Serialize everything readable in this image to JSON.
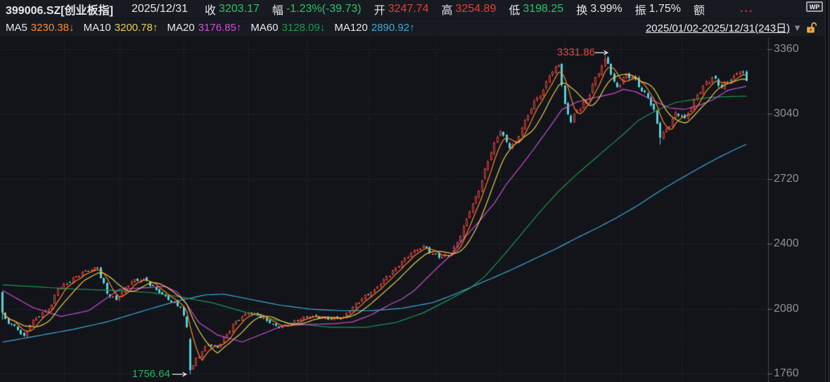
{
  "header": {
    "symbol": "399006.SZ[创业板指]",
    "date": "2025/12/31",
    "stats": [
      {
        "label": "收",
        "value": "3203.17",
        "color": "#2ec06a"
      },
      {
        "label": "幅",
        "value": "-1.23%(-39.73)",
        "color": "#2ec06a"
      },
      {
        "label": "开",
        "value": "3247.74",
        "color": "#e0403a"
      },
      {
        "label": "高",
        "value": "3254.89",
        "color": "#e0403a"
      },
      {
        "label": "低",
        "value": "3198.25",
        "color": "#2ec06a"
      },
      {
        "label": "换",
        "value": "3.99%",
        "color": "#e6e8ea"
      },
      {
        "label": "振",
        "value": "1.75%",
        "color": "#e6e8ea"
      },
      {
        "label": "额",
        "value": "...",
        "color": "#c03a3c"
      }
    ],
    "wp_icon_text": "WP"
  },
  "ma_legend": [
    {
      "label": "MA5",
      "value": "3230.38",
      "arrow": "↓",
      "color": "#ff8a28"
    },
    {
      "label": "MA10",
      "value": "3200.78",
      "arrow": "↑",
      "color": "#ecd04e"
    },
    {
      "label": "MA20",
      "value": "3176.85",
      "arrow": "↑",
      "color": "#cc50d4"
    },
    {
      "label": "MA60",
      "value": "3128.09",
      "arrow": "↓",
      "color": "#1e9655"
    },
    {
      "label": "MA120",
      "value": "2890.92",
      "arrow": "↑",
      "color": "#3fa9dc"
    }
  ],
  "range_selector": {
    "label": "2025/01/02-2025/12/31(243日)"
  },
  "chart_data": {
    "type": "candlestick",
    "symbol": "399006.SZ 创业板指",
    "period": "2025/01/02-2025/12/31",
    "days": 243,
    "y_axis": {
      "ticks": [
        "3360",
        "3040",
        "2720",
        "2400",
        "2080",
        "1760"
      ],
      "min": 1760,
      "max": 3360
    },
    "annotations": [
      {
        "text": "3331.86",
        "day": 196,
        "price": 3331.86,
        "color": "#e0453f",
        "kind": "period-high"
      },
      {
        "text": "1756.64",
        "day": 61,
        "price": 1756.64,
        "color": "#2fae63",
        "kind": "period-low"
      }
    ],
    "last_quote": {
      "open": 3247.74,
      "high": 3254.89,
      "low": 3198.25,
      "close": 3203.17,
      "change_pct": -1.23,
      "change": -39.73
    },
    "colors": {
      "up": "#e0403a",
      "down": "#54d2da",
      "bg": "#12141a",
      "grid": "#3a3e45",
      "axis_line": "#44484f",
      "tick": "#6a6d72",
      "ma5": "#ff8a28",
      "ma10": "#ecd04e",
      "ma20": "#cc50d4",
      "ma60": "#1e9655",
      "ma120": "#3fa9dc",
      "arrow": "#cdd1d6"
    },
    "close_waypoints": [
      [
        0,
        2060
      ],
      [
        1,
        2030
      ],
      [
        3,
        2000
      ],
      [
        5,
        1975
      ],
      [
        7,
        1945
      ],
      [
        9,
        2000
      ],
      [
        11,
        2035
      ],
      [
        14,
        2070
      ],
      [
        16,
        2100
      ],
      [
        18,
        2180
      ],
      [
        21,
        2205
      ],
      [
        24,
        2240
      ],
      [
        27,
        2268
      ],
      [
        31,
        2278
      ],
      [
        34,
        2155
      ],
      [
        37,
        2125
      ],
      [
        42,
        2215
      ],
      [
        46,
        2228
      ],
      [
        50,
        2175
      ],
      [
        54,
        2125
      ],
      [
        58,
        2085
      ],
      [
        60,
        1990
      ],
      [
        61,
        1776
      ],
      [
        62,
        1800
      ],
      [
        63,
        1835
      ],
      [
        65,
        1870
      ],
      [
        67,
        1905
      ],
      [
        70,
        1888
      ],
      [
        73,
        1955
      ],
      [
        76,
        2020
      ],
      [
        80,
        2060
      ],
      [
        83,
        2048
      ],
      [
        87,
        2008
      ],
      [
        90,
        1985
      ],
      [
        93,
        2000
      ],
      [
        97,
        2028
      ],
      [
        100,
        2042
      ],
      [
        104,
        2036
      ],
      [
        107,
        2028
      ],
      [
        111,
        2042
      ],
      [
        114,
        2090
      ],
      [
        117,
        2130
      ],
      [
        121,
        2175
      ],
      [
        124,
        2225
      ],
      [
        128,
        2280
      ],
      [
        131,
        2330
      ],
      [
        133,
        2355
      ],
      [
        137,
        2390
      ],
      [
        140,
        2352
      ],
      [
        142,
        2332
      ],
      [
        146,
        2348
      ],
      [
        149,
        2440
      ],
      [
        152,
        2560
      ],
      [
        155,
        2660
      ],
      [
        157,
        2770
      ],
      [
        160,
        2900
      ],
      [
        162,
        2955
      ],
      [
        165,
        2870
      ],
      [
        167,
        2905
      ],
      [
        170,
        3010
      ],
      [
        173,
        3105
      ],
      [
        176,
        3160
      ],
      [
        178,
        3230
      ],
      [
        181,
        3280
      ],
      [
        183,
        3090
      ],
      [
        185,
        3000
      ],
      [
        187,
        3060
      ],
      [
        190,
        3110
      ],
      [
        193,
        3220
      ],
      [
        196,
        3312
      ],
      [
        197,
        3290
      ],
      [
        199,
        3200
      ],
      [
        200,
        3172
      ],
      [
        203,
        3235
      ],
      [
        205,
        3225
      ],
      [
        207,
        3175
      ],
      [
        210,
        3120
      ],
      [
        212,
        3060
      ],
      [
        214,
        2925
      ],
      [
        217,
        2980
      ],
      [
        219,
        3050
      ],
      [
        222,
        3020
      ],
      [
        225,
        3110
      ],
      [
        228,
        3180
      ],
      [
        231,
        3220
      ],
      [
        234,
        3170
      ],
      [
        236,
        3200
      ],
      [
        238,
        3230
      ],
      [
        240,
        3248
      ],
      [
        241,
        3243
      ],
      [
        242,
        3203.17
      ]
    ],
    "special_candles": {
      "0": {
        "open": 2162,
        "high": 2166,
        "low": 2028
      },
      "61": {
        "open": 1930,
        "high": 1938,
        "low": 1756.64,
        "close": 1776
      },
      "137": {
        "high": 2397
      },
      "196": {
        "high": 3331.86
      },
      "214": {
        "low": 2888
      },
      "242": {
        "open": 3247.74,
        "high": 3254.89,
        "low": 3198.25,
        "close": 3203.17
      }
    },
    "ma_waypoints": {
      "ma20": [
        [
          0,
          2170
        ],
        [
          10,
          2085
        ],
        [
          19,
          2042
        ],
        [
          28,
          2070
        ],
        [
          38,
          2175
        ],
        [
          48,
          2185
        ],
        [
          53,
          2190
        ],
        [
          57,
          2160
        ],
        [
          60,
          2100
        ],
        [
          64,
          2010
        ],
        [
          70,
          1950
        ],
        [
          78,
          1916
        ],
        [
          85,
          1958
        ],
        [
          91,
          1995
        ],
        [
          100,
          2003
        ],
        [
          108,
          2006
        ],
        [
          114,
          2015
        ],
        [
          120,
          2050
        ],
        [
          126,
          2100
        ],
        [
          130,
          2128
        ],
        [
          134,
          2170
        ],
        [
          138,
          2230
        ],
        [
          142,
          2290
        ],
        [
          146,
          2345
        ],
        [
          150,
          2425
        ],
        [
          155,
          2509
        ],
        [
          160,
          2600
        ],
        [
          164,
          2695
        ],
        [
          169,
          2790
        ],
        [
          173,
          2870
        ],
        [
          178,
          2975
        ],
        [
          182,
          3062
        ],
        [
          187,
          3100
        ],
        [
          191,
          3115
        ],
        [
          196,
          3132
        ],
        [
          199,
          3142
        ],
        [
          202,
          3162
        ],
        [
          206,
          3150
        ],
        [
          212,
          3104
        ],
        [
          217,
          3070
        ],
        [
          222,
          3063
        ],
        [
          227,
          3085
        ],
        [
          231,
          3110
        ],
        [
          236,
          3157
        ],
        [
          242,
          3176.85
        ]
      ],
      "ma60": [
        [
          0,
          2198
        ],
        [
          23,
          2177
        ],
        [
          36,
          2170
        ],
        [
          48,
          2160
        ],
        [
          57,
          2140
        ],
        [
          68,
          2110
        ],
        [
          82,
          2050
        ],
        [
          93,
          2010
        ],
        [
          107,
          1988
        ],
        [
          118,
          1988
        ],
        [
          128,
          2012
        ],
        [
          137,
          2060
        ],
        [
          146,
          2130
        ],
        [
          152,
          2180
        ],
        [
          157,
          2240
        ],
        [
          164,
          2360
        ],
        [
          170,
          2470
        ],
        [
          175,
          2560
        ],
        [
          181,
          2660
        ],
        [
          187,
          2745
        ],
        [
          192,
          2810
        ],
        [
          196,
          2863
        ],
        [
          202,
          2940
        ],
        [
          207,
          3010
        ],
        [
          213,
          3060
        ],
        [
          219,
          3097
        ],
        [
          225,
          3112
        ],
        [
          230,
          3122
        ],
        [
          236,
          3126
        ],
        [
          242,
          3128.09
        ]
      ],
      "ma120": [
        [
          0,
          1915
        ],
        [
          11,
          1945
        ],
        [
          23,
          1978
        ],
        [
          34,
          2015
        ],
        [
          46,
          2070
        ],
        [
          57,
          2118
        ],
        [
          66,
          2148
        ],
        [
          72,
          2152
        ],
        [
          80,
          2128
        ],
        [
          90,
          2098
        ],
        [
          100,
          2078
        ],
        [
          110,
          2070
        ],
        [
          120,
          2070
        ],
        [
          130,
          2082
        ],
        [
          140,
          2110
        ],
        [
          147,
          2150
        ],
        [
          153,
          2190
        ],
        [
          160,
          2235
        ],
        [
          166,
          2275
        ],
        [
          172,
          2318
        ],
        [
          180,
          2375
        ],
        [
          187,
          2430
        ],
        [
          194,
          2482
        ],
        [
          200,
          2530
        ],
        [
          207,
          2592
        ],
        [
          214,
          2662
        ],
        [
          220,
          2716
        ],
        [
          226,
          2768
        ],
        [
          232,
          2818
        ],
        [
          237,
          2856
        ],
        [
          242,
          2890.92
        ]
      ]
    },
    "month_grid_days": [
      20,
      38,
      59,
      80,
      99,
      119,
      141,
      162,
      183,
      201,
      221
    ]
  }
}
